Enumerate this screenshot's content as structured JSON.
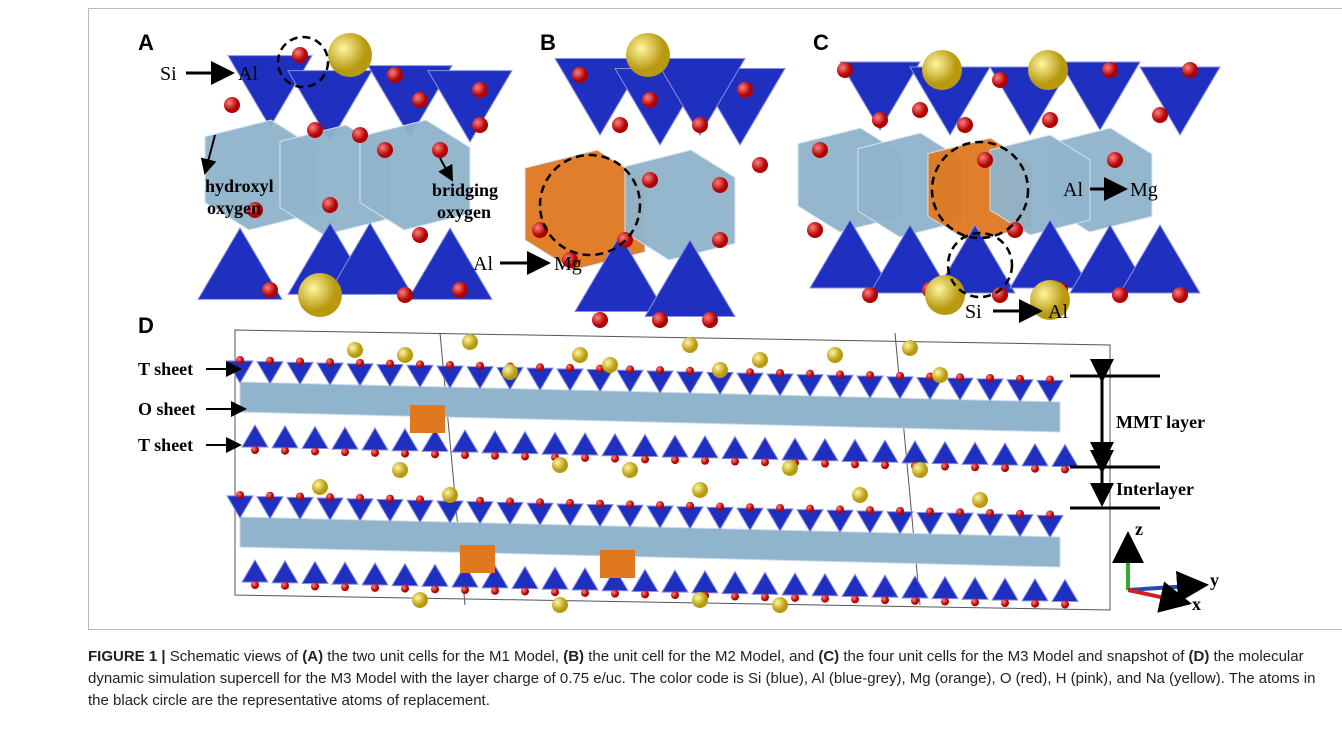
{
  "figure": {
    "panels": {
      "A": {
        "label": "A",
        "substitution": {
          "from": "Si",
          "to": "Al"
        },
        "annotations": [
          [
            "hydroxyl",
            "oxygen"
          ],
          [
            "bridging",
            "oxygen"
          ]
        ]
      },
      "B": {
        "label": "B",
        "substitution": {
          "from": "Al",
          "to": "Mg"
        }
      },
      "C": {
        "label": "C",
        "substitutions": [
          {
            "from": "Al",
            "to": "Mg"
          },
          {
            "from": "Si",
            "to": "Al"
          }
        ]
      },
      "D": {
        "label": "D",
        "sheets": [
          "T sheet",
          "O sheet",
          "T sheet"
        ],
        "brackets": [
          "MMT layer",
          "Interlayer"
        ],
        "axes": [
          "z",
          "y",
          "x"
        ]
      }
    },
    "caption": {
      "label": "FIGURE 1 |",
      "parts": [
        "Schematic views of ",
        "(A)",
        " the two unit cells for the M1 Model, ",
        "(B)",
        " the unit cell for the M2 Model, and ",
        "(C)",
        " the four unit cells for the M3 Model and snapshot of ",
        "(D)",
        " the molecular dynamic simulation supercell for the M3 Model with the layer charge of 0.75 e/uc. The color code is Si (blue), Al (blue-grey), Mg (orange), O (red), H (pink), and Na (yellow). The atoms in the black circle are the representative atoms of replacement."
      ]
    }
  }
}
